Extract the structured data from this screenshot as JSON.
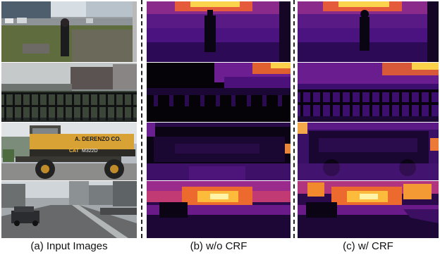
{
  "figure": {
    "captions": {
      "input": "(a) Input Images",
      "without_crf": "(b) w/o CRF",
      "with_crf": "(c) w/ CRF"
    },
    "columns": [
      "input-images",
      "depth-without-crf",
      "depth-with-crf"
    ],
    "rows": [
      "street-person",
      "fence-building",
      "excavator",
      "highway-car"
    ],
    "image_text": {
      "excavator_brand": "A. DERENZO CO.",
      "excavator_model": "M322D",
      "excavator_logo": "CAT"
    },
    "colors": {
      "depth_far": "#000004",
      "depth_mid": "#7b1fa2",
      "depth_near": "#fcfdbf",
      "separator": "#222222"
    }
  }
}
